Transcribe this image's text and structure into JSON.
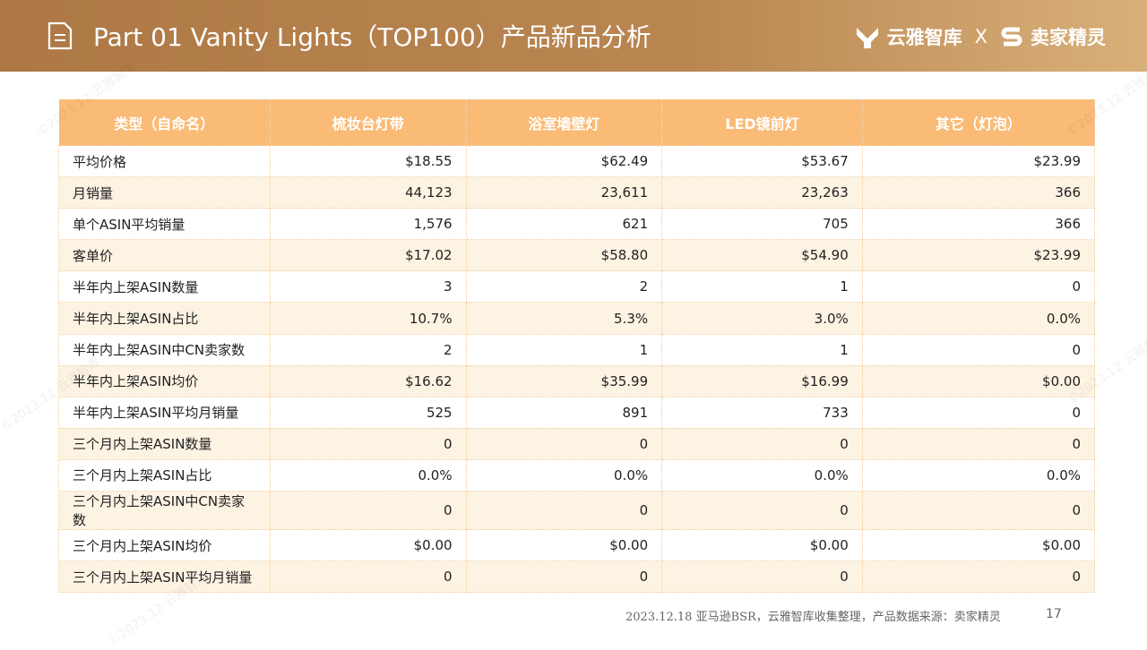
{
  "header": {
    "title": "Part 01  Vanity Lights（TOP100）产品新品分析",
    "logo1": "云雅智库",
    "separator": "X",
    "logo2": "卖家精灵"
  },
  "table": {
    "columns": [
      "类型（自命名）",
      "梳妆台灯带",
      "浴室墙壁灯",
      "LED镜前灯",
      "其它（灯泡）"
    ],
    "rows": [
      [
        "平均价格",
        "$18.55",
        "$62.49",
        "$53.67",
        "$23.99"
      ],
      [
        "月销量",
        "44,123",
        "23,611",
        "23,263",
        "366"
      ],
      [
        "单个ASIN平均销量",
        "1,576",
        "621",
        "705",
        "366"
      ],
      [
        "客单价",
        "$17.02",
        "$58.80",
        "$54.90",
        "$23.99"
      ],
      [
        "半年内上架ASIN数量",
        "3",
        "2",
        "1",
        "0"
      ],
      [
        "半年内上架ASIN占比",
        "10.7%",
        "5.3%",
        "3.0%",
        "0.0%"
      ],
      [
        "半年内上架ASIN中CN卖家数",
        "2",
        "1",
        "1",
        "0"
      ],
      [
        "半年内上架ASIN均价",
        "$16.62",
        "$35.99",
        "$16.99",
        "$0.00"
      ],
      [
        "半年内上架ASIN平均月销量",
        "525",
        "891",
        "733",
        "0"
      ],
      [
        "三个月内上架ASIN数量",
        "0",
        "0",
        "0",
        "0"
      ],
      [
        "三个月内上架ASIN占比",
        "0.0%",
        "0.0%",
        "0.0%",
        "0.0%"
      ],
      [
        "三个月内上架ASIN中CN卖家数",
        "0",
        "0",
        "0",
        "0"
      ],
      [
        "三个月内上架ASIN均价",
        "$0.00",
        "$0.00",
        "$0.00",
        "$0.00"
      ],
      [
        "三个月内上架ASIN平均月销量",
        "0",
        "0",
        "0",
        "0"
      ]
    ]
  },
  "footer": {
    "source": "2023.12.18 亚马逊BSR，云雅智库收集整理，产品数据来源：卖家精灵",
    "page": "17"
  },
  "watermark": "©2023.12 云雅智库"
}
